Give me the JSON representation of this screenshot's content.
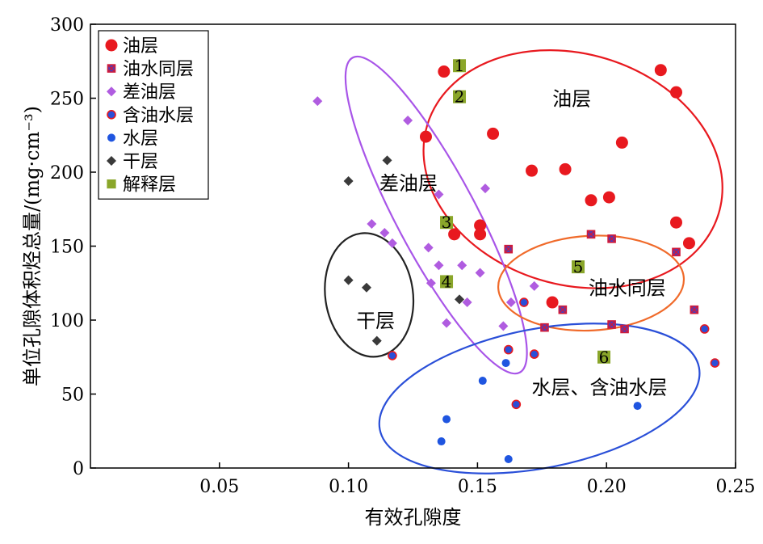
{
  "chart_data": {
    "type": "scatter",
    "title": "",
    "xlabel": "有效孔隙度",
    "ylabel": "单位孔隙体积烃总量/(mg·cm⁻³)",
    "xlim": [
      0.0,
      0.25
    ],
    "ylim": [
      0,
      300
    ],
    "xticks": [
      0.05,
      0.1,
      0.15,
      0.2,
      0.25
    ],
    "xtick_labels": [
      "0.05",
      "0.10",
      "0.15",
      "0.20",
      "0.25"
    ],
    "yticks": [
      0,
      50,
      100,
      150,
      200,
      250,
      300
    ],
    "ytick_labels": [
      "0",
      "50",
      "100",
      "150",
      "200",
      "250",
      "300"
    ],
    "grid": false,
    "legend_position": "top-left",
    "series": [
      {
        "name": "油层",
        "marker": "circle-large",
        "color": "#e8191f",
        "points": [
          [
            0.137,
            268
          ],
          [
            0.141,
            158
          ],
          [
            0.151,
            164
          ],
          [
            0.151,
            158
          ],
          [
            0.13,
            224
          ],
          [
            0.156,
            226
          ],
          [
            0.171,
            201
          ],
          [
            0.184,
            202
          ],
          [
            0.194,
            181
          ],
          [
            0.201,
            183
          ],
          [
            0.206,
            220
          ],
          [
            0.221,
            269
          ],
          [
            0.227,
            254
          ],
          [
            0.227,
            166
          ],
          [
            0.232,
            152
          ],
          [
            0.179,
            112
          ]
        ]
      },
      {
        "name": "油水同层",
        "marker": "square-x",
        "color": "#4a3fbd",
        "points": [
          [
            0.162,
            148
          ],
          [
            0.183,
            107
          ],
          [
            0.176,
            95
          ],
          [
            0.194,
            158
          ],
          [
            0.202,
            155
          ],
          [
            0.202,
            97
          ],
          [
            0.207,
            94
          ],
          [
            0.227,
            146
          ],
          [
            0.234,
            107
          ]
        ]
      },
      {
        "name": "差油层",
        "marker": "diamond",
        "color": "#b05ce0",
        "points": [
          [
            0.088,
            248
          ],
          [
            0.123,
            235
          ],
          [
            0.135,
            185
          ],
          [
            0.153,
            189
          ],
          [
            0.131,
            149
          ],
          [
            0.135,
            137
          ],
          [
            0.144,
            137
          ],
          [
            0.132,
            125
          ],
          [
            0.151,
            132
          ],
          [
            0.146,
            112
          ],
          [
            0.16,
            96
          ],
          [
            0.172,
            123
          ],
          [
            0.138,
            98
          ],
          [
            0.163,
            112
          ],
          [
            0.109,
            165
          ],
          [
            0.114,
            159
          ],
          [
            0.117,
            152
          ]
        ]
      },
      {
        "name": "含油水层",
        "marker": "circle-ringed",
        "color": "#2a4fd8",
        "points": [
          [
            0.117,
            76
          ],
          [
            0.162,
            80
          ],
          [
            0.172,
            77
          ],
          [
            0.168,
            112
          ],
          [
            0.165,
            43
          ],
          [
            0.238,
            94
          ],
          [
            0.242,
            71
          ]
        ]
      },
      {
        "name": "水层",
        "marker": "circle-small",
        "color": "#1f55e0",
        "points": [
          [
            0.161,
            71
          ],
          [
            0.152,
            59
          ],
          [
            0.138,
            33
          ],
          [
            0.136,
            18
          ],
          [
            0.162,
            6
          ],
          [
            0.212,
            42
          ]
        ]
      },
      {
        "name": "干层",
        "marker": "diamond-dark",
        "color": "#3a3a3a",
        "points": [
          [
            0.115,
            208
          ],
          [
            0.1,
            194
          ],
          [
            0.1,
            127
          ],
          [
            0.107,
            122
          ],
          [
            0.111,
            86
          ],
          [
            0.143,
            114
          ]
        ]
      },
      {
        "name": "解释层",
        "marker": "square",
        "color": "#8aa62a",
        "points": [
          [
            0.143,
            272
          ],
          [
            0.143,
            251
          ],
          [
            0.138,
            166
          ],
          [
            0.138,
            126
          ],
          [
            0.189,
            136
          ],
          [
            0.199,
            75
          ]
        ],
        "labels": [
          "1",
          "2",
          "3",
          "4",
          "5",
          "6"
        ]
      }
    ],
    "group_labels": [
      {
        "text": "油层",
        "x": 0.179,
        "y": 250
      },
      {
        "text": "差油层",
        "x": 0.112,
        "y": 193
      },
      {
        "text": "干层",
        "x": 0.103,
        "y": 100
      },
      {
        "text": "油水同层",
        "x": 0.193,
        "y": 122
      },
      {
        "text": "水层、含油水层",
        "x": 0.171,
        "y": 55
      }
    ],
    "ellipses": [
      {
        "group": "油层",
        "color": "#e8191f",
        "cx": 0.187,
        "cy": 202,
        "rx": 0.059,
        "ry": 78,
        "angle_deg": 17
      },
      {
        "group": "差油层",
        "color": "#a855e8",
        "cx": 0.134,
        "cy": 171,
        "rx": 0.069,
        "ry": 27,
        "angle_deg": 62
      },
      {
        "group": "干层",
        "color": "#222222",
        "cx": 0.108,
        "cy": 117,
        "rx": 0.017,
        "ry": 42,
        "angle_deg": -8
      },
      {
        "group": "油水同层",
        "color": "#f06a2a",
        "cx": 0.194,
        "cy": 125,
        "rx": 0.036,
        "ry": 32,
        "angle_deg": -3
      },
      {
        "group": "水层、含油水层",
        "color": "#2a4fd8",
        "cx": 0.174,
        "cy": 47,
        "rx": 0.063,
        "ry": 47,
        "angle_deg": -11
      }
    ]
  }
}
